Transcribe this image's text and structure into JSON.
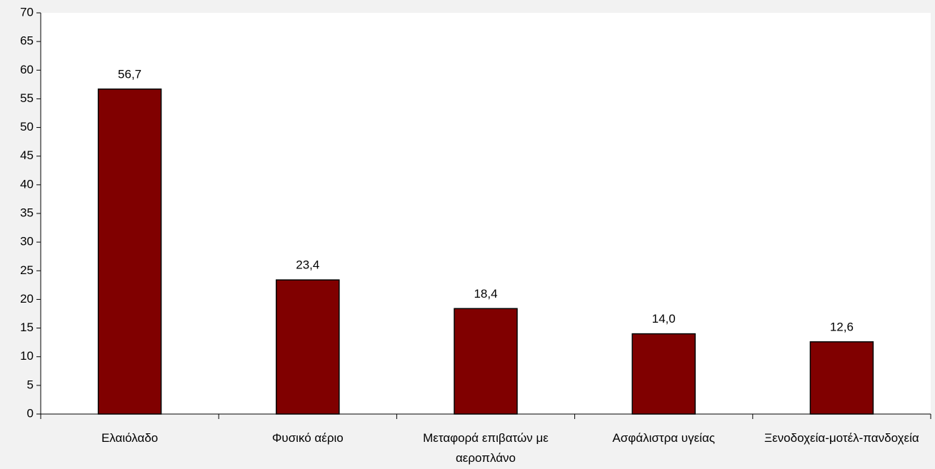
{
  "chart_data": {
    "type": "bar",
    "categories": [
      "Ελαιόλαδο",
      "Φυσικό αέριο",
      "Μεταφορά επιβατών με αεροπλάνο",
      "Ασφάλιστρα υγείας",
      "Ξενοδοχεία-μοτέλ-πανδοχεία"
    ],
    "values": [
      56.7,
      23.4,
      18.4,
      14.0,
      12.6
    ],
    "value_labels": [
      "56,7",
      "23,4",
      "18,4",
      "14,0",
      "12,6"
    ],
    "color": "#800000",
    "ylim": [
      0,
      70
    ],
    "yticks": [
      0,
      5,
      10,
      15,
      20,
      25,
      30,
      35,
      40,
      45,
      50,
      55,
      60,
      65,
      70
    ],
    "grid": false
  }
}
